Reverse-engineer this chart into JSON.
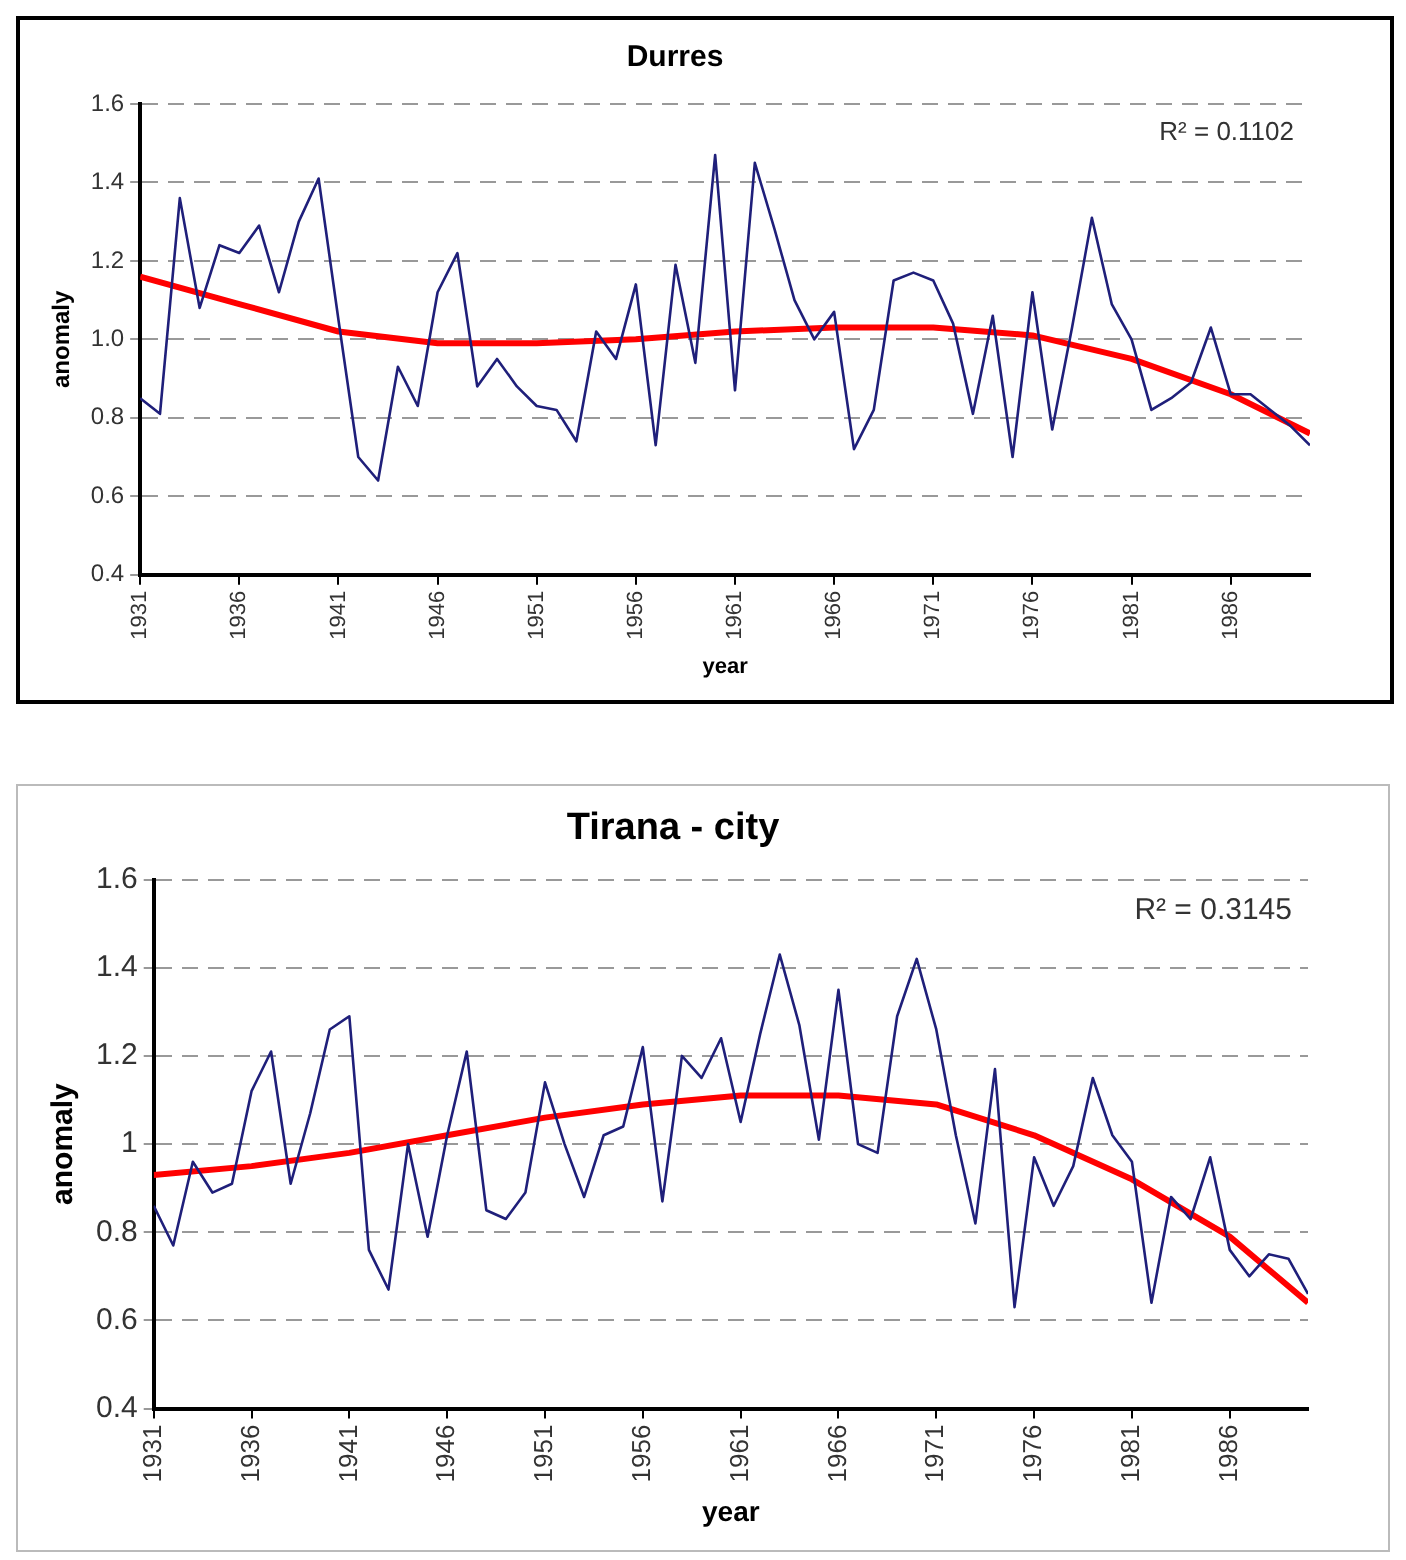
{
  "chart_data": [
    {
      "type": "line",
      "title": "Durres",
      "xlabel": "year",
      "ylabel": "anomaly",
      "annotations": [
        "R² = 0.1102"
      ],
      "grid": "y",
      "legend": false,
      "marker": "none",
      "x": [
        1931,
        1932,
        1933,
        1934,
        1935,
        1936,
        1937,
        1938,
        1939,
        1940,
        1941,
        1942,
        1943,
        1944,
        1945,
        1946,
        1947,
        1948,
        1949,
        1950,
        1951,
        1952,
        1953,
        1954,
        1955,
        1956,
        1957,
        1958,
        1959,
        1960,
        1961,
        1962,
        1963,
        1964,
        1965,
        1966,
        1967,
        1968,
        1969,
        1970,
        1971,
        1972,
        1973,
        1974,
        1975,
        1976,
        1977,
        1978,
        1979,
        1980,
        1981,
        1982,
        1983,
        1984,
        1985,
        1986,
        1987,
        1988,
        1989,
        1990
      ],
      "xlim": [
        1931,
        1990
      ],
      "xticks": [
        1931,
        1936,
        1941,
        1946,
        1951,
        1956,
        1961,
        1966,
        1971,
        1976,
        1981,
        1986
      ],
      "ylim": [
        0.4,
        1.6
      ],
      "yticks": [
        {
          "value": 0.4,
          "label": "0.4"
        },
        {
          "value": 0.6,
          "label": "0.6"
        },
        {
          "value": 0.8,
          "label": "0.8"
        },
        {
          "value": 1,
          "label": "1.0"
        },
        {
          "value": 1.2,
          "label": "1.2"
        },
        {
          "value": 1.4,
          "label": "1.4"
        },
        {
          "value": 1.6,
          "label": "1.6"
        }
      ],
      "series": [
        {
          "color": "#1f1f7a",
          "values": [
            0.85,
            0.81,
            1.36,
            1.08,
            1.24,
            1.22,
            1.29,
            1.12,
            1.3,
            1.41,
            1.05,
            0.7,
            0.64,
            0.93,
            0.83,
            1.12,
            1.22,
            0.88,
            0.95,
            0.88,
            0.83,
            0.82,
            0.74,
            1.02,
            0.95,
            1.14,
            0.73,
            1.19,
            0.94,
            1.47,
            0.87,
            1.45,
            1.28,
            1.1,
            1.0,
            1.07,
            0.72,
            0.82,
            1.15,
            1.17,
            1.15,
            1.04,
            0.81,
            1.06,
            0.7,
            1.12,
            0.77,
            1.03,
            1.31,
            1.09,
            1.0,
            0.82,
            0.85,
            0.89,
            1.03,
            0.86,
            0.86,
            0.82,
            0.78,
            0.73
          ]
        },
        {
          "type": "line",
          "color": "#ff0000",
          "x": [
            1931,
            1936,
            1941,
            1946,
            1951,
            1956,
            1961,
            1966,
            1971,
            1976,
            1981,
            1986,
            1990
          ],
          "values": [
            1.16,
            1.09,
            1.02,
            0.99,
            0.99,
            1.0,
            1.02,
            1.03,
            1.03,
            1.01,
            0.95,
            0.86,
            0.76
          ]
        }
      ]
    },
    {
      "type": "line",
      "title": "Tirana - city",
      "xlabel": "year",
      "ylabel": "anomaly",
      "annotations": [
        "R² = 0.3145"
      ],
      "grid": "y",
      "legend": false,
      "marker": "none",
      "x": [
        1931,
        1932,
        1933,
        1934,
        1935,
        1936,
        1937,
        1938,
        1939,
        1940,
        1941,
        1942,
        1943,
        1944,
        1945,
        1946,
        1947,
        1948,
        1949,
        1950,
        1951,
        1952,
        1953,
        1954,
        1955,
        1956,
        1957,
        1958,
        1959,
        1960,
        1961,
        1962,
        1963,
        1964,
        1965,
        1966,
        1967,
        1968,
        1969,
        1970,
        1971,
        1972,
        1973,
        1974,
        1975,
        1976,
        1977,
        1978,
        1979,
        1980,
        1981,
        1982,
        1983,
        1984,
        1985,
        1986,
        1987,
        1988,
        1989,
        1990
      ],
      "xlim": [
        1931,
        1990
      ],
      "xticks": [
        1931,
        1936,
        1941,
        1946,
        1951,
        1956,
        1961,
        1966,
        1971,
        1976,
        1981,
        1986
      ],
      "ylim": [
        0.4,
        1.6
      ],
      "yticks": [
        0.4,
        0.6,
        0.8,
        1,
        1.2,
        1.4,
        1.6
      ],
      "series": [
        {
          "color": "#1f1f7a",
          "values": [
            0.86,
            0.77,
            0.96,
            0.89,
            0.91,
            1.12,
            1.21,
            0.91,
            1.07,
            1.26,
            1.29,
            0.76,
            0.67,
            1.0,
            0.79,
            1.02,
            1.21,
            0.85,
            0.83,
            0.89,
            1.14,
            1.0,
            0.88,
            1.02,
            1.04,
            1.22,
            0.87,
            1.2,
            1.15,
            1.24,
            1.05,
            1.25,
            1.43,
            1.27,
            1.01,
            1.35,
            1.0,
            0.98,
            1.29,
            1.42,
            1.26,
            1.02,
            0.82,
            1.17,
            0.63,
            0.97,
            0.86,
            0.95,
            1.15,
            1.02,
            0.96,
            0.64,
            0.88,
            0.83,
            0.97,
            0.76,
            0.7,
            0.75,
            0.74,
            0.66
          ]
        },
        {
          "type": "line",
          "color": "#ff0000",
          "x": [
            1931,
            1936,
            1941,
            1946,
            1951,
            1956,
            1961,
            1966,
            1971,
            1976,
            1981,
            1986,
            1990
          ],
          "values": [
            0.93,
            0.95,
            0.98,
            1.02,
            1.06,
            1.09,
            1.11,
            1.11,
            1.09,
            1.02,
            0.92,
            0.79,
            0.64
          ]
        }
      ]
    }
  ]
}
